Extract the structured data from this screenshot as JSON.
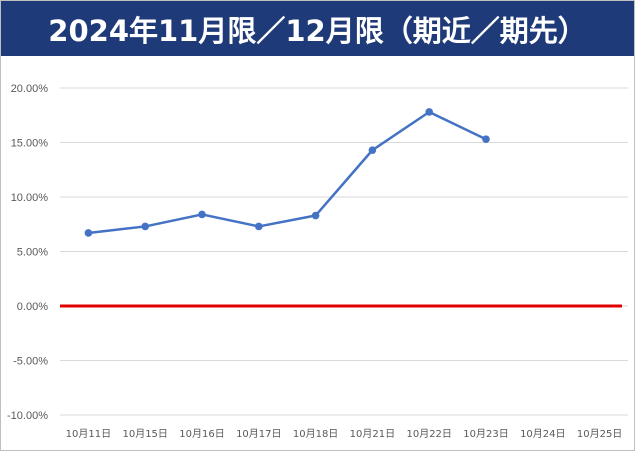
{
  "title": "2024年11月限／12月限（期近／期先）",
  "colors": {
    "title_bg": "#1f3a78",
    "series": "#4472c4",
    "zero_line": "#e00000",
    "grid": "#d9d9d9"
  },
  "chart_data": {
    "type": "line",
    "title": "2024年11月限／12月限（期近／期先）",
    "xlabel": "",
    "ylabel": "",
    "categories": [
      "10月11日",
      "10月15日",
      "10月16日",
      "10月17日",
      "10月18日",
      "10月21日",
      "10月22日",
      "10月23日",
      "10月24日",
      "10月25日"
    ],
    "y_ticks": [
      "20.00%",
      "15.00%",
      "10.00%",
      "5.00%",
      "0.00%",
      "-5.00%",
      "-10.00%"
    ],
    "y_tick_values": [
      20,
      15,
      10,
      5,
      0,
      -5,
      -10
    ],
    "ylim": [
      -10,
      20
    ],
    "grid": true,
    "legend": "none",
    "reference_line": 0,
    "series": [
      {
        "values": [
          6.7,
          7.3,
          8.4,
          7.3,
          8.3,
          14.3,
          17.8,
          15.3,
          null,
          null
        ]
      }
    ]
  }
}
